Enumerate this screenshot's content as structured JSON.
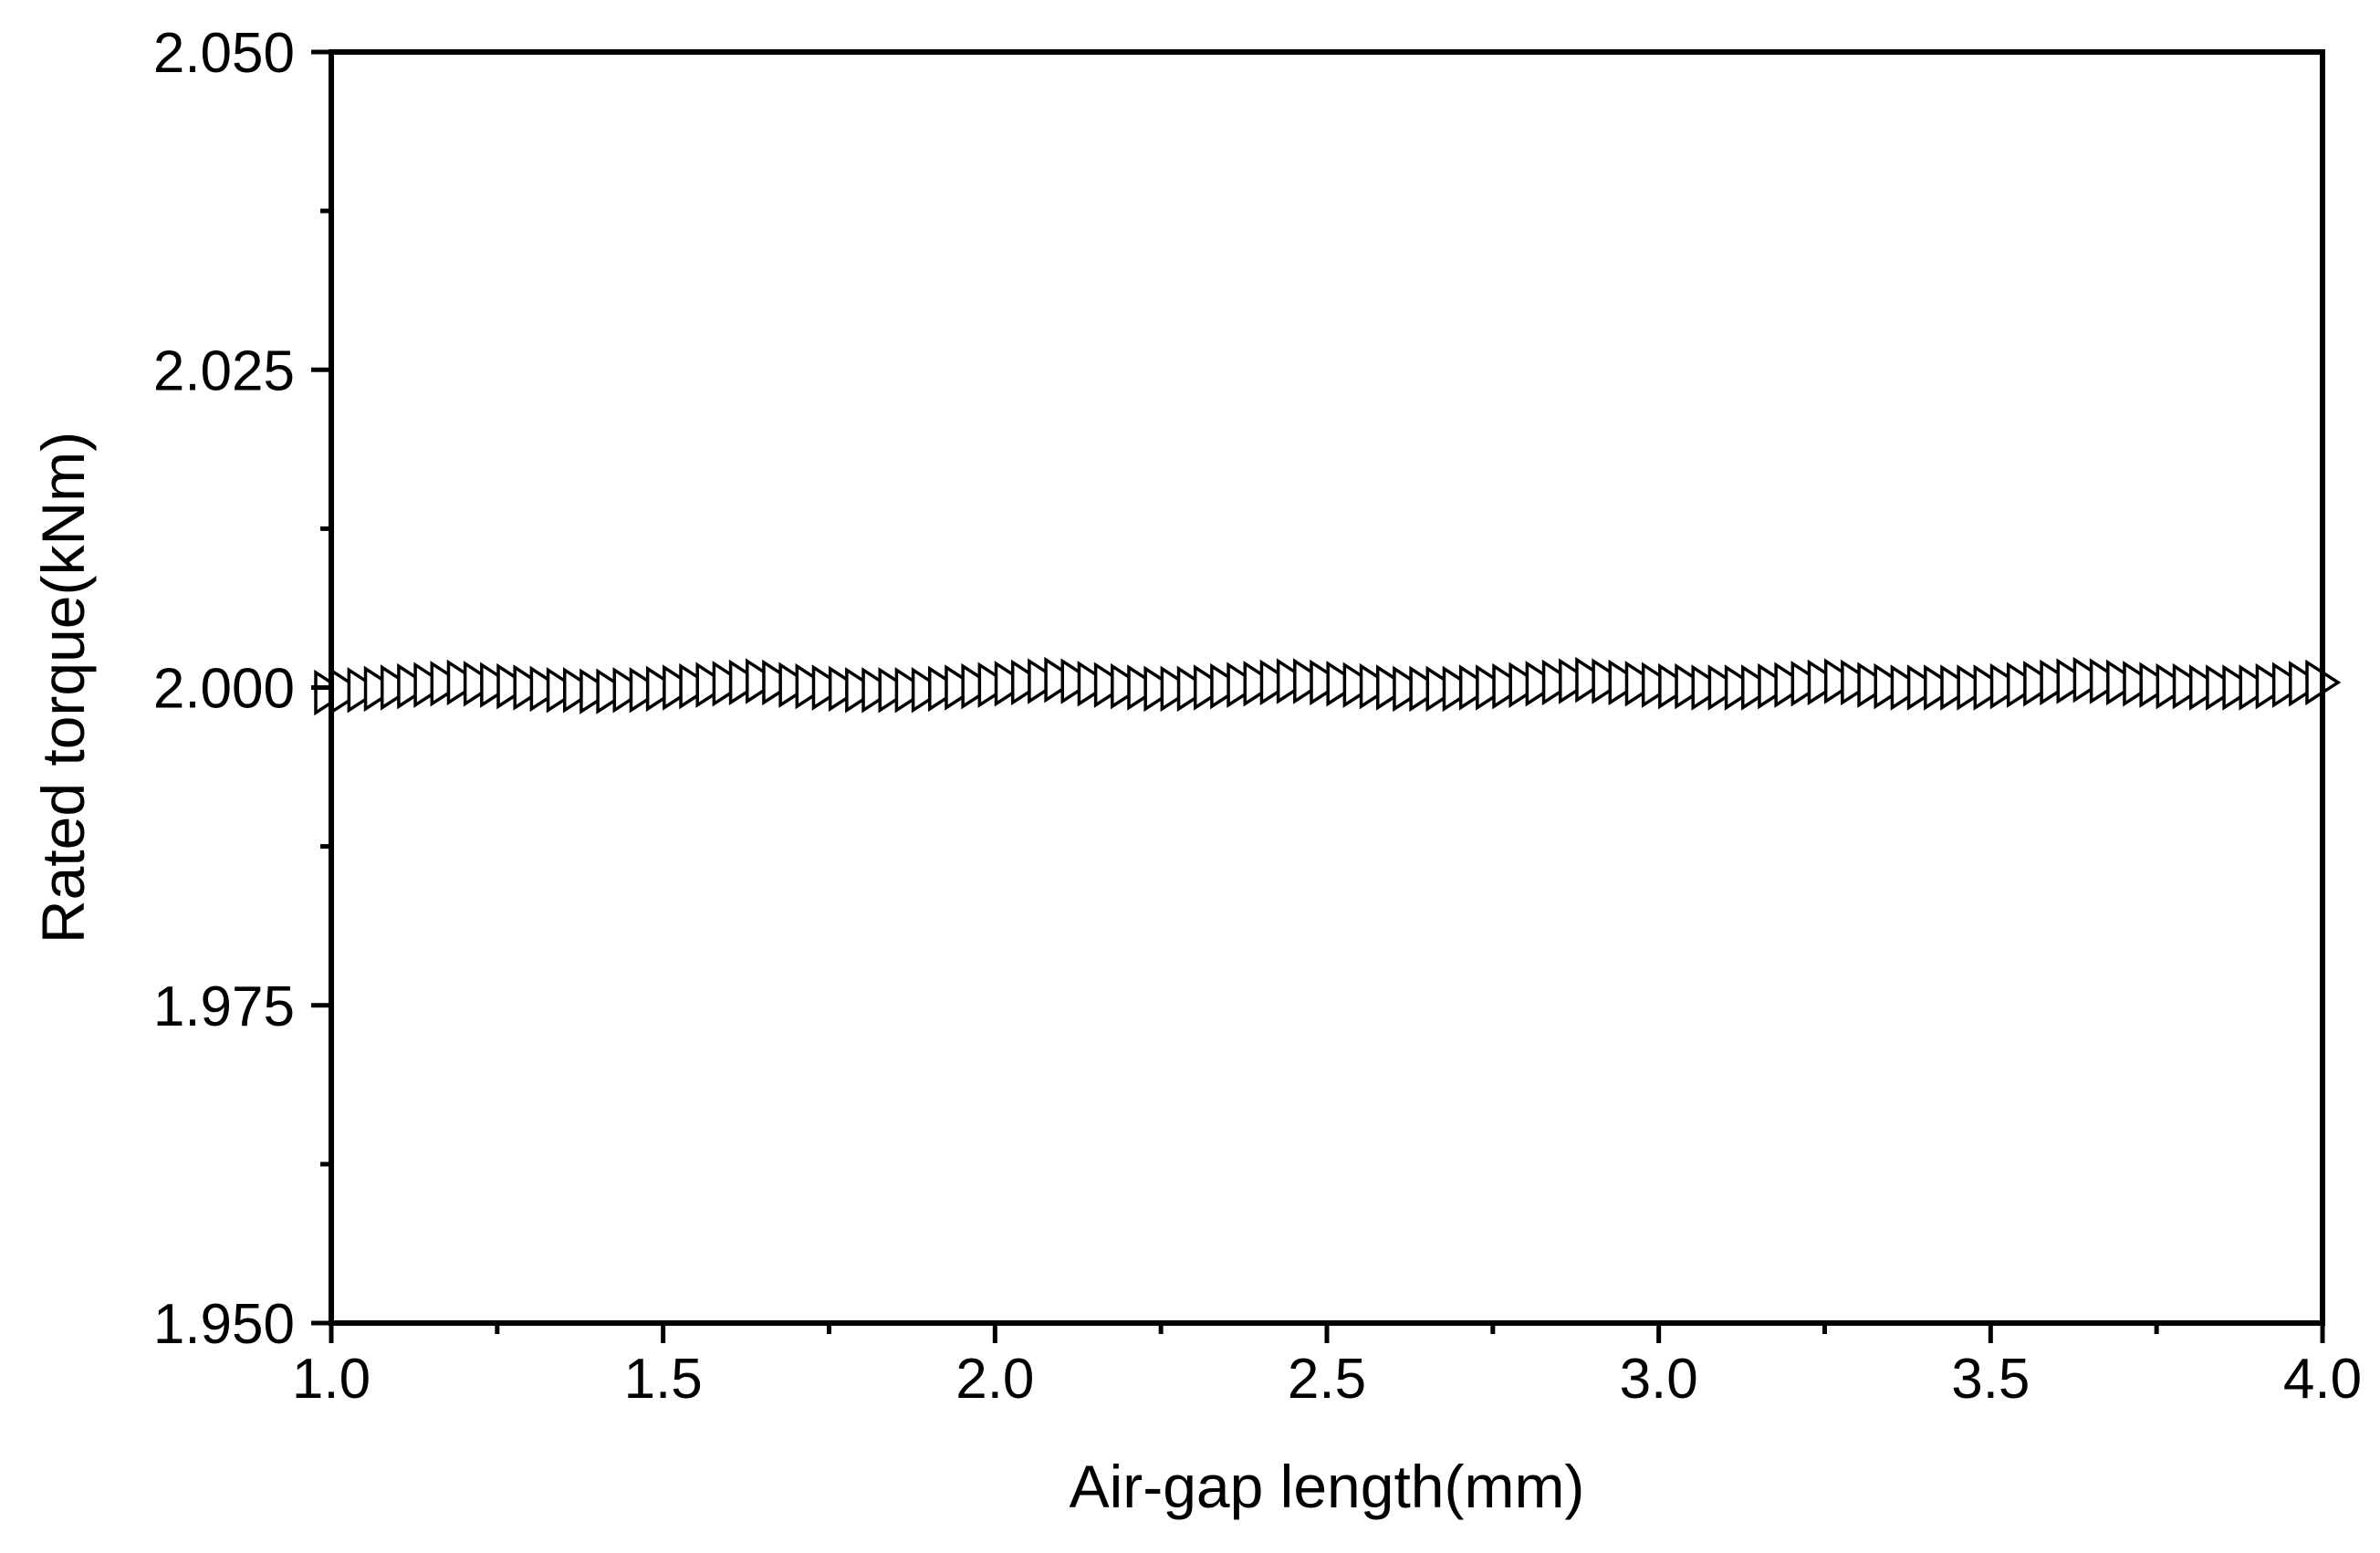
{
  "chart_data": {
    "type": "scatter",
    "title": "",
    "xlabel": "Air-gap length(mm)",
    "ylabel": "Rated torque(kNm)",
    "xlim": [
      1.0,
      4.0
    ],
    "ylim": [
      1.95,
      2.05
    ],
    "xticks": [
      "1.0",
      "1.5",
      "2.0",
      "2.5",
      "3.0",
      "3.5",
      "4.0"
    ],
    "yticks": [
      "1.950",
      "1.975",
      "2.000",
      "2.025",
      "2.050"
    ],
    "x_minor_step": 0.25,
    "y_minor_step": 0.0125,
    "grid": false,
    "legend": "none",
    "marker": "right-pointing open triangle",
    "marker_color": "#000000",
    "series": [
      {
        "x": [
          1.0,
          1.025,
          1.05,
          1.075,
          1.1,
          1.125,
          1.15,
          1.175,
          1.2,
          1.225,
          1.25,
          1.275,
          1.3,
          1.325,
          1.35,
          1.375,
          1.4,
          1.425,
          1.45,
          1.475,
          1.5,
          1.525,
          1.55,
          1.575,
          1.6,
          1.625,
          1.65,
          1.675,
          1.7,
          1.725,
          1.75,
          1.775,
          1.8,
          1.825,
          1.85,
          1.875,
          1.9,
          1.925,
          1.95,
          1.975,
          2.0,
          2.025,
          2.05,
          2.075,
          2.1,
          2.125,
          2.15,
          2.175,
          2.2,
          2.225,
          2.25,
          2.275,
          2.3,
          2.325,
          2.35,
          2.375,
          2.4,
          2.425,
          2.45,
          2.475,
          2.5,
          2.525,
          2.55,
          2.575,
          2.6,
          2.625,
          2.65,
          2.675,
          2.7,
          2.725,
          2.75,
          2.775,
          2.8,
          2.825,
          2.85,
          2.875,
          2.9,
          2.925,
          2.95,
          2.975,
          3.0,
          3.025,
          3.05,
          3.075,
          3.1,
          3.125,
          3.15,
          3.175,
          3.2,
          3.225,
          3.25,
          3.275,
          3.3,
          3.325,
          3.35,
          3.375,
          3.4,
          3.425,
          3.45,
          3.475,
          3.5,
          3.525,
          3.55,
          3.575,
          3.6,
          3.625,
          3.65,
          3.675,
          3.7,
          3.725,
          3.75,
          3.775,
          3.8,
          3.825,
          3.85,
          3.875,
          3.9,
          3.925,
          3.95,
          3.975,
          4.0
        ],
        "y": [
          1.9996,
          1.9997,
          1.9998,
          1.9999,
          2.0,
          2.0001,
          2.0002,
          2.0003,
          2.0004,
          2.0003,
          2.0002,
          2.0001,
          2.0,
          1.9999,
          1.9998,
          1.9998,
          1.9997,
          1.9997,
          1.9998,
          1.9998,
          1.9999,
          2.0,
          2.0001,
          2.0002,
          2.0003,
          2.0004,
          2.0005,
          2.0004,
          2.0002,
          2.0001,
          2.0,
          1.9999,
          1.9998,
          1.9998,
          1.9998,
          1.9998,
          1.9998,
          1.9999,
          2.0,
          2.0001,
          2.0002,
          2.0003,
          2.0004,
          2.0005,
          2.0006,
          2.0005,
          2.0003,
          2.0002,
          2.0001,
          2.0,
          1.9999,
          1.9999,
          1.9999,
          2.0,
          2.0001,
          2.0002,
          2.0003,
          2.0004,
          2.0005,
          2.0005,
          2.0004,
          2.0003,
          2.0002,
          2.0001,
          2.0,
          1.9999,
          1.9999,
          1.9999,
          1.9999,
          2.0,
          2.0,
          2.0001,
          2.0002,
          2.0003,
          2.0004,
          2.0005,
          2.0006,
          2.0005,
          2.0004,
          2.0003,
          2.0002,
          2.0001,
          2.0001,
          2.0,
          2.0,
          2.0,
          2.0,
          2.0001,
          2.0002,
          2.0003,
          2.0004,
          2.0005,
          2.0004,
          2.0002,
          2.0001,
          2.0,
          2.0,
          2.0,
          2.0,
          2.0,
          2.0,
          2.0001,
          2.0002,
          2.0003,
          2.0004,
          2.0005,
          2.0006,
          2.0005,
          2.0004,
          2.0003,
          2.0002,
          2.0001,
          2.0001,
          2.0,
          2.0,
          2.0,
          2.0,
          2.0001,
          2.0002,
          2.0003,
          2.0004
        ]
      }
    ]
  }
}
